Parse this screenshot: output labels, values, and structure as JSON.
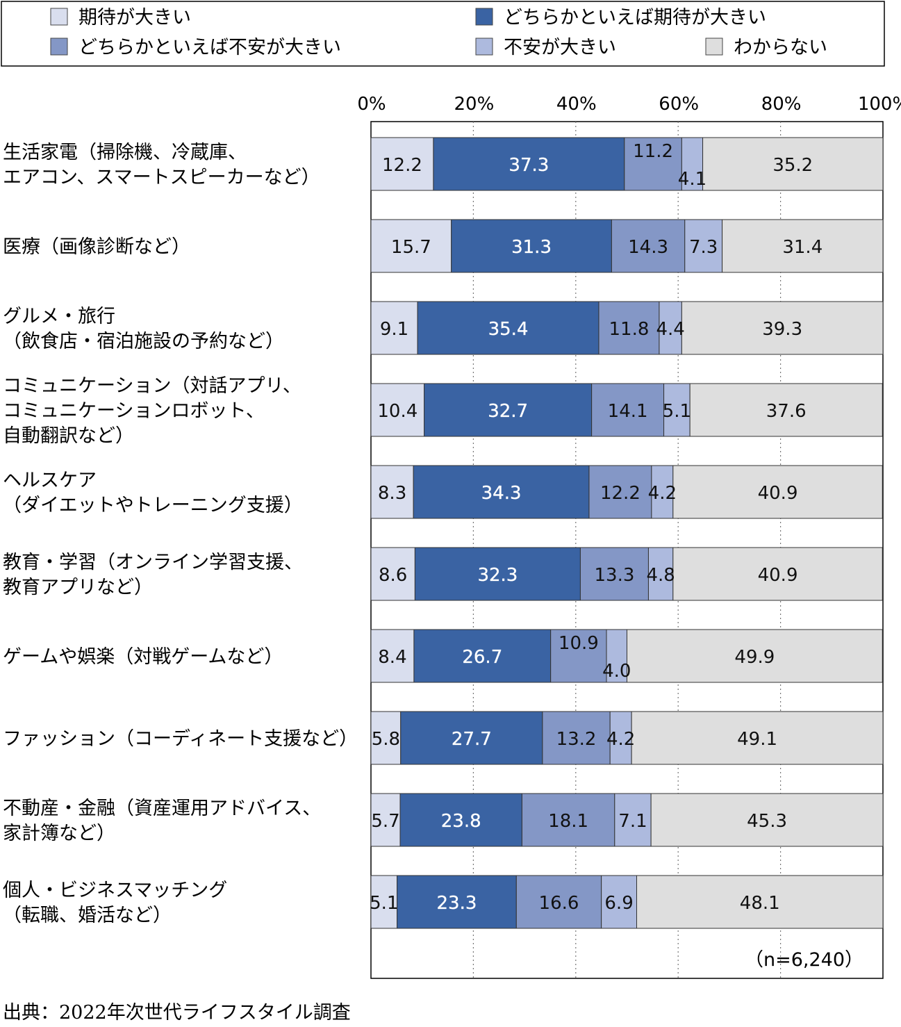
{
  "chart_data": {
    "type": "bar",
    "orientation": "horizontal",
    "stacked": true,
    "percent": true,
    "categories": [
      [
        "生活家電（掃除機、冷蔵庫、",
        "エアコン、スマートスピーカーなど）"
      ],
      [
        "医療（画像診断など）"
      ],
      [
        "グルメ・旅行",
        "（飲食店・宿泊施設の予約など）"
      ],
      [
        "コミュニケーション（対話アプリ、",
        "コミュニケーションロボット、",
        "自動翻訳など）"
      ],
      [
        "ヘルスケア",
        "（ダイエットやトレーニング支援）"
      ],
      [
        "教育・学習（オンライン学習支援、",
        "教育アプリなど）"
      ],
      [
        "ゲームや娯楽（対戦ゲームなど）"
      ],
      [
        "ファッション（コーディネート支援など）"
      ],
      [
        "不動産・金融（資産運用アドバイス、",
        "家計簿など）"
      ],
      [
        "個人・ビジネスマッチング",
        "（転職、婚活など）"
      ]
    ],
    "series": [
      {
        "name": "期待が大きい",
        "color": "#d9deee",
        "values": [
          12.2,
          15.7,
          9.1,
          10.4,
          8.3,
          8.6,
          8.4,
          5.8,
          5.7,
          5.1
        ]
      },
      {
        "name": "どちらかといえば期待が大きい",
        "color": "#3a63a3",
        "values": [
          37.3,
          31.3,
          35.4,
          32.7,
          34.3,
          32.3,
          26.7,
          27.7,
          23.8,
          23.3
        ]
      },
      {
        "name": "どちらかといえば不安が大きい",
        "color": "#8497c6",
        "values": [
          11.2,
          14.3,
          11.8,
          14.1,
          12.2,
          13.3,
          10.9,
          13.2,
          18.1,
          16.6
        ]
      },
      {
        "name": "不安が大きい",
        "color": "#adbade",
        "values": [
          4.1,
          7.3,
          4.4,
          5.1,
          4.2,
          4.8,
          4.0,
          4.2,
          7.1,
          6.9
        ]
      },
      {
        "name": "わからない",
        "color": "#dedede",
        "values": [
          35.2,
          31.4,
          39.3,
          37.6,
          40.9,
          40.9,
          49.9,
          49.1,
          45.3,
          48.1
        ]
      }
    ],
    "x_ticks": [
      "0%",
      "20%",
      "40%",
      "60%",
      "80%",
      "100%"
    ],
    "xlim": [
      0,
      100
    ],
    "grid": "vertical-dotted",
    "legend_position": "top",
    "note": "（n=6,240）",
    "source": "出典：2022年次世代ライフスタイル調査"
  }
}
